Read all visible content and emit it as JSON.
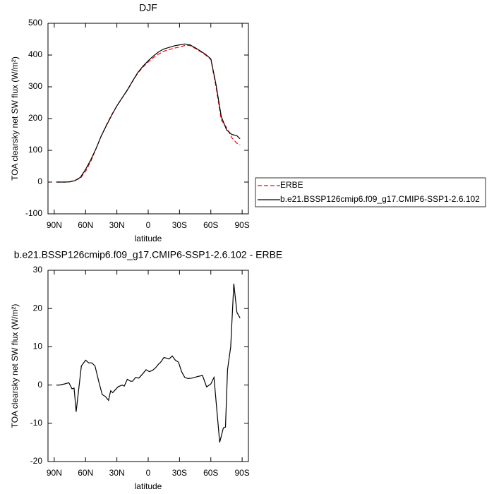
{
  "chart_data": [
    {
      "type": "line",
      "title": "DJF",
      "xlabel": "latitude",
      "ylabel": "TOA clearsky net SW flux (W/m²)",
      "xlim": [
        96,
        -96
      ],
      "ylim": [
        -100,
        500
      ],
      "xticks": [
        {
          "value": 90,
          "label": "90N"
        },
        {
          "value": 60,
          "label": "60N"
        },
        {
          "value": 30,
          "label": "30N"
        },
        0,
        {
          "value": -30,
          "label": "30S"
        },
        {
          "value": -60,
          "label": "60S"
        },
        {
          "value": -90,
          "label": "90S"
        }
      ],
      "yticks": [
        -100,
        0,
        100,
        200,
        300,
        400,
        500
      ],
      "legend": "right",
      "x": [
        88,
        85,
        80,
        75,
        70,
        65,
        60,
        55,
        50,
        45,
        40,
        35,
        30,
        25,
        20,
        15,
        10,
        5,
        0,
        -5,
        -10,
        -15,
        -20,
        -25,
        -30,
        -35,
        -40,
        -45,
        -50,
        -55,
        -60,
        -65,
        -70,
        -75,
        -80,
        -85,
        -88
      ],
      "series": [
        {
          "name": "ERBE",
          "color": "#ff0000",
          "dash": true,
          "values": [
            0,
            0,
            0,
            1,
            6,
            12,
            34,
            65,
            105,
            145,
            180,
            212,
            240,
            265,
            289,
            317,
            343,
            362,
            378,
            392,
            403,
            412,
            417,
            422,
            425,
            430,
            430,
            421,
            411,
            400,
            386,
            300,
            196,
            172,
            140,
            122,
            117
          ]
        },
        {
          "name": "b.e21.BSSP126cmip6.f09_g17.CMIP6-SSP1-2.6.102",
          "color": "#000000",
          "dash": false,
          "values": [
            0,
            0,
            0,
            1,
            5,
            15,
            40,
            70,
            105,
            145,
            178,
            210,
            240,
            265,
            290,
            318,
            345,
            365,
            382,
            397,
            410,
            419,
            424,
            429,
            432,
            435,
            432,
            423,
            413,
            402,
            388,
            307,
            207,
            165,
            150,
            146,
            136
          ]
        }
      ]
    },
    {
      "type": "line",
      "title": "b.e21.BSSP126cmip6.f09_g17.CMIP6-SSP1-2.6.102 - ERBE",
      "xlabel": "latitude",
      "ylabel": "TOA clearsky net SW flux (W/m²)",
      "xlim": [
        96,
        -96
      ],
      "ylim": [
        -20,
        30
      ],
      "xticks": [
        {
          "value": 90,
          "label": "90N"
        },
        {
          "value": 60,
          "label": "60N"
        },
        {
          "value": 30,
          "label": "30N"
        },
        0,
        {
          "value": -30,
          "label": "30S"
        },
        {
          "value": -60,
          "label": "60S"
        },
        {
          "value": -90,
          "label": "90S"
        }
      ],
      "yticks": [
        -20,
        -10,
        0,
        10,
        20,
        30
      ],
      "x": [
        88,
        85,
        80,
        76,
        73,
        71,
        69,
        64,
        60,
        57,
        54,
        51,
        47,
        44,
        41,
        38,
        36,
        34,
        29,
        25,
        23,
        20,
        17,
        15,
        12,
        9,
        5,
        2,
        -1,
        -4,
        -7,
        -10,
        -12,
        -15,
        -18,
        -20,
        -23,
        -26,
        -29,
        -32,
        -35,
        -38,
        -42,
        -47,
        -52,
        -56,
        -60,
        -63,
        -68.5,
        -72,
        -74,
        -76,
        -79,
        -82,
        -85,
        -88
      ],
      "series": [
        {
          "color": "#000000",
          "dash": false,
          "values": [
            0,
            0,
            0.3,
            0.6,
            -1,
            -0.8,
            -7,
            5,
            6.5,
            5.8,
            5.8,
            5,
            0.5,
            -2.5,
            -3,
            -4,
            -1.5,
            -2,
            -0.5,
            0,
            -0.3,
            1.5,
            1,
            1,
            2,
            1.8,
            3,
            4,
            3.5,
            3.8,
            4.5,
            5.5,
            6,
            7.2,
            7,
            6.8,
            7.6,
            6.5,
            6,
            3.5,
            2,
            1.7,
            1.8,
            2.2,
            2.5,
            -0.5,
            0.3,
            2,
            -15,
            -11.2,
            -11,
            4,
            10,
            26.5,
            19,
            17.5
          ]
        }
      ]
    }
  ]
}
